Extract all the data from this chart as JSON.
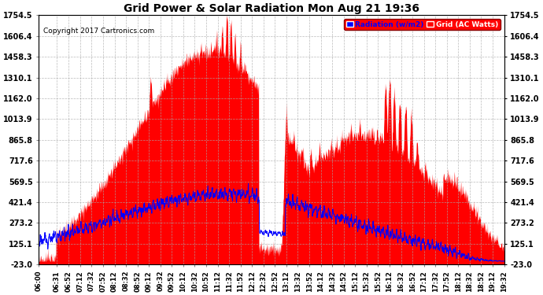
{
  "title": "Grid Power & Solar Radiation Mon Aug 21 19:36",
  "copyright": "Copyright 2017 Cartronics.com",
  "background_color": "#ffffff",
  "plot_bg_color": "#ffffff",
  "grid_color": "#aaaaaa",
  "yticks": [
    -23.0,
    125.1,
    273.2,
    421.4,
    569.5,
    717.6,
    865.8,
    1013.9,
    1162.0,
    1310.1,
    1458.3,
    1606.4,
    1754.5
  ],
  "ymin": -23.0,
  "ymax": 1754.5,
  "legend_radiation_label": "Radiation (w/m2)",
  "legend_grid_label": "Grid (AC Watts)",
  "radiation_color": "#0000ff",
  "grid_power_color": "#ff0000",
  "xtick_labels": [
    "06:00",
    "06:31",
    "06:52",
    "07:12",
    "07:32",
    "07:52",
    "08:12",
    "08:32",
    "08:52",
    "09:12",
    "09:32",
    "09:52",
    "10:12",
    "10:32",
    "10:52",
    "11:12",
    "11:32",
    "11:52",
    "12:12",
    "12:32",
    "12:52",
    "13:12",
    "13:32",
    "13:52",
    "14:12",
    "14:32",
    "14:52",
    "15:12",
    "15:32",
    "15:52",
    "16:12",
    "16:32",
    "16:52",
    "17:12",
    "17:32",
    "17:52",
    "18:12",
    "18:32",
    "18:52",
    "19:12",
    "19:32"
  ]
}
